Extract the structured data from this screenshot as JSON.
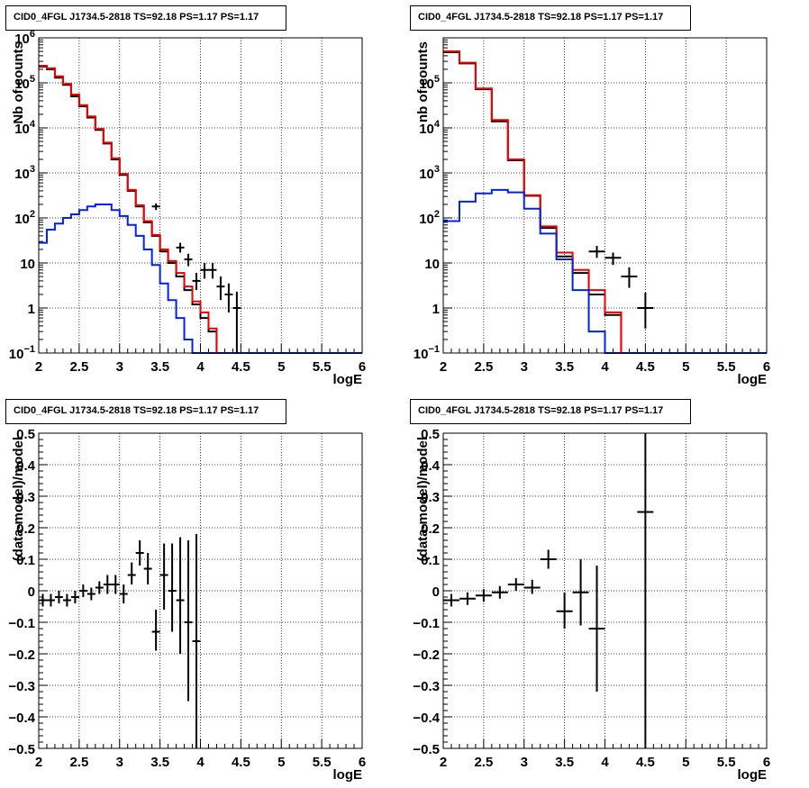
{
  "chart_data": [
    {
      "type": "line",
      "title": "CID0_4FGL J1734.5-2818 TS=92.18 PS=1.17 PS=1.17",
      "xlabel": "logE",
      "ylabel": "Nb of counts",
      "ylog": true,
      "xlim": [
        2,
        6
      ],
      "ylim": [
        0.1,
        1000000
      ],
      "grid": true,
      "xticks": [
        "2",
        "2.5",
        "3",
        "3.5",
        "4",
        "4.5",
        "5",
        "5.5",
        "6"
      ],
      "yticks": [
        {
          "v": 0.1,
          "mant": "10",
          "exp": "−1"
        },
        {
          "v": 1,
          "mant": "1",
          "exp": ""
        },
        {
          "v": 10,
          "mant": "10",
          "exp": ""
        },
        {
          "v": 100,
          "mant": "10",
          "exp": "2"
        },
        {
          "v": 1000,
          "mant": "10",
          "exp": "3"
        },
        {
          "v": 10000,
          "mant": "10",
          "exp": "4"
        },
        {
          "v": 100000,
          "mant": "10",
          "exp": "5"
        },
        {
          "v": 1000000,
          "mant": "10",
          "exp": "6"
        }
      ],
      "bin_edges": [
        2.0,
        2.1,
        2.2,
        2.3,
        2.4,
        2.5,
        2.6,
        2.7,
        2.8,
        2.9,
        3.0,
        3.1,
        3.2,
        3.3,
        3.4,
        3.5,
        3.6,
        3.7,
        3.8,
        3.9,
        4.0,
        4.1,
        4.2,
        4.3,
        4.4,
        4.5,
        4.6,
        4.7,
        4.8,
        4.9,
        5.0,
        5.1,
        5.2,
        5.3,
        5.4,
        5.5,
        5.6,
        5.7,
        5.8,
        5.9,
        6.0
      ],
      "series": [
        {
          "color": "#000000",
          "kind": "step",
          "values": [
            230000,
            200000,
            130000,
            90000,
            50000,
            30000,
            17000,
            9000,
            4500,
            2000,
            900,
            400,
            180,
            80,
            40,
            18,
            10,
            5,
            2.5,
            1.2,
            0.6,
            0.3,
            0.1,
            0.1,
            0.1,
            0.1,
            0.1,
            0.1,
            0.1,
            0.1,
            0.1,
            0.1,
            0.1,
            0.1,
            0.1,
            0.1,
            0.1,
            0.1,
            0.1,
            0.1
          ]
        },
        {
          "color": "#ee0000",
          "kind": "step",
          "values": [
            240000,
            210000,
            140000,
            95000,
            55000,
            32000,
            18000,
            9500,
            4700,
            2100,
            950,
            420,
            190,
            85,
            42,
            20,
            11,
            6,
            3,
            1.4,
            0.8,
            0.35,
            0.1,
            0.1,
            0.1,
            0.1,
            0.1,
            0.1,
            0.1,
            0.1,
            0.1,
            0.1,
            0.1,
            0.1,
            0.1,
            0.1,
            0.1,
            0.1,
            0.1,
            0.1
          ]
        },
        {
          "color": "#0022ee",
          "kind": "step",
          "values": [
            28,
            55,
            75,
            100,
            120,
            150,
            180,
            200,
            200,
            150,
            110,
            70,
            40,
            20,
            9,
            3.5,
            1.5,
            0.6,
            0.2,
            0.1,
            0.1,
            0.1,
            0.1,
            0.1,
            0.1,
            0.1,
            0.1,
            0.1,
            0.1,
            0.1,
            0.1,
            0.1,
            0.1,
            0.1,
            0.1,
            0.1,
            0.1,
            0.1,
            0.1,
            0.1
          ]
        },
        {
          "color": "#000000",
          "kind": "points",
          "points": [
            {
              "x": 3.45,
              "y": 180,
              "xerr": 0.05,
              "ylo": 150,
              "yhi": 210
            },
            {
              "x": 3.75,
              "y": 22,
              "xerr": 0.05,
              "ylo": 17,
              "yhi": 28
            },
            {
              "x": 3.85,
              "y": 12,
              "xerr": 0.05,
              "ylo": 8.5,
              "yhi": 16
            },
            {
              "x": 3.95,
              "y": 4,
              "xerr": 0.05,
              "ylo": 2.5,
              "yhi": 6
            },
            {
              "x": 4.05,
              "y": 7,
              "xerr": 0.05,
              "ylo": 4.5,
              "yhi": 10
            },
            {
              "x": 4.15,
              "y": 7,
              "xerr": 0.05,
              "ylo": 4.5,
              "yhi": 10
            },
            {
              "x": 4.25,
              "y": 3,
              "xerr": 0.05,
              "ylo": 1.5,
              "yhi": 5
            },
            {
              "x": 4.35,
              "y": 2,
              "xerr": 0.05,
              "ylo": 0.8,
              "yhi": 3.5
            },
            {
              "x": 4.45,
              "y": 1,
              "xerr": 0.05,
              "ylo": 0.1,
              "yhi": 2.3
            }
          ]
        }
      ]
    },
    {
      "type": "line",
      "title": "CID0_4FGL J1734.5-2818 TS=92.18 PS=1.17 PS=1.17",
      "xlabel": "logE",
      "ylabel": "nb of counts",
      "ylog": true,
      "xlim": [
        2,
        6
      ],
      "ylim": [
        0.1,
        1000000
      ],
      "grid": true,
      "xticks": [
        "2",
        "2.5",
        "3",
        "3.5",
        "4",
        "4.5",
        "5",
        "5.5",
        "6"
      ],
      "yticks": [
        {
          "v": 0.1,
          "mant": "10",
          "exp": "−1"
        },
        {
          "v": 1,
          "mant": "1",
          "exp": ""
        },
        {
          "v": 10,
          "mant": "10",
          "exp": ""
        },
        {
          "v": 100,
          "mant": "10",
          "exp": "2"
        },
        {
          "v": 1000,
          "mant": "10",
          "exp": "3"
        },
        {
          "v": 10000,
          "mant": "10",
          "exp": "4"
        },
        {
          "v": 100000,
          "mant": "10",
          "exp": "5"
        }
      ],
      "bin_edges": [
        2.0,
        2.2,
        2.4,
        2.6,
        2.8,
        3.0,
        3.2,
        3.4,
        3.6,
        3.8,
        4.0,
        4.2,
        4.4,
        4.6,
        4.8,
        5.0,
        5.2,
        5.4,
        5.6,
        5.8,
        6.0
      ],
      "series": [
        {
          "color": "#000000",
          "kind": "step",
          "values": [
            480000,
            270000,
            72000,
            14000,
            1900,
            310,
            60,
            14,
            6,
            2,
            0.7,
            0.1,
            0.1,
            0.1,
            0.1,
            0.1,
            0.1,
            0.1,
            0.1,
            0.1
          ]
        },
        {
          "color": "#ee0000",
          "kind": "step",
          "values": [
            500000,
            280000,
            75000,
            15000,
            2000,
            320,
            65,
            17,
            7,
            2.5,
            0.8,
            0.1,
            0.1,
            0.1,
            0.1,
            0.1,
            0.1,
            0.1,
            0.1,
            0.1
          ]
        },
        {
          "color": "#0022ee",
          "kind": "step",
          "values": [
            85,
            230,
            350,
            420,
            370,
            160,
            45,
            12,
            2.5,
            0.3,
            0.1,
            0.1,
            0.1,
            0.1,
            0.1,
            0.1,
            0.1,
            0.1,
            0.1,
            0.1
          ]
        },
        {
          "color": "#000000",
          "kind": "points",
          "points": [
            {
              "x": 3.9,
              "y": 18,
              "xerr": 0.1,
              "ylo": 13,
              "yhi": 24
            },
            {
              "x": 4.1,
              "y": 13,
              "xerr": 0.1,
              "ylo": 9,
              "yhi": 17
            },
            {
              "x": 4.3,
              "y": 5,
              "xerr": 0.1,
              "ylo": 2.8,
              "yhi": 8
            },
            {
              "x": 4.5,
              "y": 1,
              "xerr": 0.1,
              "ylo": 0.35,
              "yhi": 2.2
            }
          ]
        }
      ]
    },
    {
      "type": "scatter",
      "title": "CID0_4FGL J1734.5-2818 TS=92.18 PS=1.17 PS=1.17",
      "xlabel": "logE",
      "ylabel": "(data-model)/model",
      "ylog": false,
      "xlim": [
        2,
        6
      ],
      "ylim": [
        -0.5,
        0.5
      ],
      "grid": true,
      "xticks": [
        "2",
        "2.5",
        "3",
        "3.5",
        "4",
        "4.5",
        "5",
        "5.5",
        "6"
      ],
      "yticks": [
        {
          "v": -0.5,
          "label": "−0.5"
        },
        {
          "v": -0.4,
          "label": "−0.4"
        },
        {
          "v": -0.3,
          "label": "−0.3"
        },
        {
          "v": -0.2,
          "label": "−0.2"
        },
        {
          "v": -0.1,
          "label": "−0.1"
        },
        {
          "v": 0,
          "label": "0"
        },
        {
          "v": 0.1,
          "label": "0.1"
        },
        {
          "v": 0.2,
          "label": "0.2"
        },
        {
          "v": 0.3,
          "label": "0.3"
        },
        {
          "v": 0.4,
          "label": "0.4"
        },
        {
          "v": 0.5,
          "label": "0.5"
        }
      ],
      "series": [
        {
          "color": "#000000",
          "kind": "points",
          "points": [
            {
              "x": 2.05,
              "y": -0.03,
              "xerr": 0.05,
              "ylo": -0.05,
              "yhi": -0.01
            },
            {
              "x": 2.15,
              "y": -0.03,
              "xerr": 0.05,
              "ylo": -0.05,
              "yhi": -0.01
            },
            {
              "x": 2.25,
              "y": -0.02,
              "xerr": 0.05,
              "ylo": -0.04,
              "yhi": 0.0
            },
            {
              "x": 2.35,
              "y": -0.03,
              "xerr": 0.05,
              "ylo": -0.05,
              "yhi": -0.01
            },
            {
              "x": 2.45,
              "y": -0.02,
              "xerr": 0.05,
              "ylo": -0.04,
              "yhi": 0.0
            },
            {
              "x": 2.55,
              "y": 0.0,
              "xerr": 0.05,
              "ylo": -0.02,
              "yhi": 0.02
            },
            {
              "x": 2.65,
              "y": -0.01,
              "xerr": 0.05,
              "ylo": -0.03,
              "yhi": 0.01
            },
            {
              "x": 2.75,
              "y": 0.01,
              "xerr": 0.05,
              "ylo": -0.01,
              "yhi": 0.03
            },
            {
              "x": 2.85,
              "y": 0.02,
              "xerr": 0.05,
              "ylo": -0.01,
              "yhi": 0.05
            },
            {
              "x": 2.95,
              "y": 0.02,
              "xerr": 0.05,
              "ylo": -0.01,
              "yhi": 0.05
            },
            {
              "x": 3.05,
              "y": -0.01,
              "xerr": 0.05,
              "ylo": -0.04,
              "yhi": 0.02
            },
            {
              "x": 3.15,
              "y": 0.05,
              "xerr": 0.05,
              "ylo": 0.02,
              "yhi": 0.09
            },
            {
              "x": 3.25,
              "y": 0.12,
              "xerr": 0.05,
              "ylo": 0.08,
              "yhi": 0.16
            },
            {
              "x": 3.35,
              "y": 0.07,
              "xerr": 0.05,
              "ylo": 0.02,
              "yhi": 0.12
            },
            {
              "x": 3.45,
              "y": -0.13,
              "xerr": 0.05,
              "ylo": -0.19,
              "yhi": -0.06
            },
            {
              "x": 3.55,
              "y": 0.05,
              "xerr": 0.05,
              "ylo": -0.06,
              "yhi": 0.15
            },
            {
              "x": 3.65,
              "y": 0.0,
              "xerr": 0.05,
              "ylo": -0.13,
              "yhi": 0.15
            },
            {
              "x": 3.75,
              "y": -0.03,
              "xerr": 0.05,
              "ylo": -0.2,
              "yhi": 0.17
            },
            {
              "x": 3.85,
              "y": -0.1,
              "xerr": 0.05,
              "ylo": -0.35,
              "yhi": 0.16
            },
            {
              "x": 3.95,
              "y": -0.16,
              "xerr": 0.05,
              "ylo": -0.5,
              "yhi": 0.18
            }
          ]
        }
      ]
    },
    {
      "type": "scatter",
      "title": "CID0_4FGL J1734.5-2818 TS=92.18 PS=1.17 PS=1.17",
      "xlabel": "logE",
      "ylabel": "(data-model)/model",
      "ylog": false,
      "xlim": [
        2,
        6
      ],
      "ylim": [
        -0.5,
        0.5
      ],
      "grid": true,
      "xticks": [
        "2",
        "2.5",
        "3",
        "3.5",
        "4",
        "4.5",
        "5",
        "5.5",
        "6"
      ],
      "yticks": [
        {
          "v": -0.5,
          "label": "−0.5"
        },
        {
          "v": -0.4,
          "label": "−0.4"
        },
        {
          "v": -0.3,
          "label": "−0.3"
        },
        {
          "v": -0.2,
          "label": "−0.2"
        },
        {
          "v": -0.1,
          "label": "−0.1"
        },
        {
          "v": 0,
          "label": "0"
        },
        {
          "v": 0.1,
          "label": "0.1"
        },
        {
          "v": 0.2,
          "label": "0.2"
        },
        {
          "v": 0.3,
          "label": "0.3"
        },
        {
          "v": 0.4,
          "label": "0.4"
        },
        {
          "v": 0.5,
          "label": "0.5"
        }
      ],
      "series": [
        {
          "color": "#000000",
          "kind": "points",
          "points": [
            {
              "x": 2.1,
              "y": -0.03,
              "xerr": 0.1,
              "ylo": -0.05,
              "yhi": -0.01
            },
            {
              "x": 2.3,
              "y": -0.025,
              "xerr": 0.1,
              "ylo": -0.045,
              "yhi": -0.005
            },
            {
              "x": 2.5,
              "y": -0.015,
              "xerr": 0.1,
              "ylo": -0.035,
              "yhi": 0.005
            },
            {
              "x": 2.7,
              "y": -0.005,
              "xerr": 0.1,
              "ylo": -0.025,
              "yhi": 0.015
            },
            {
              "x": 2.9,
              "y": 0.02,
              "xerr": 0.1,
              "ylo": 0.0,
              "yhi": 0.04
            },
            {
              "x": 3.1,
              "y": 0.01,
              "xerr": 0.1,
              "ylo": -0.01,
              "yhi": 0.035
            },
            {
              "x": 3.3,
              "y": 0.1,
              "xerr": 0.1,
              "ylo": 0.07,
              "yhi": 0.13
            },
            {
              "x": 3.5,
              "y": -0.065,
              "xerr": 0.1,
              "ylo": -0.12,
              "yhi": -0.005
            },
            {
              "x": 3.7,
              "y": -0.005,
              "xerr": 0.1,
              "ylo": -0.11,
              "yhi": 0.1
            },
            {
              "x": 3.9,
              "y": -0.12,
              "xerr": 0.1,
              "ylo": -0.32,
              "yhi": 0.08
            },
            {
              "x": 4.5,
              "y": 0.25,
              "xerr": 0.1,
              "ylo": -0.5,
              "yhi": 0.5
            }
          ]
        }
      ]
    }
  ]
}
